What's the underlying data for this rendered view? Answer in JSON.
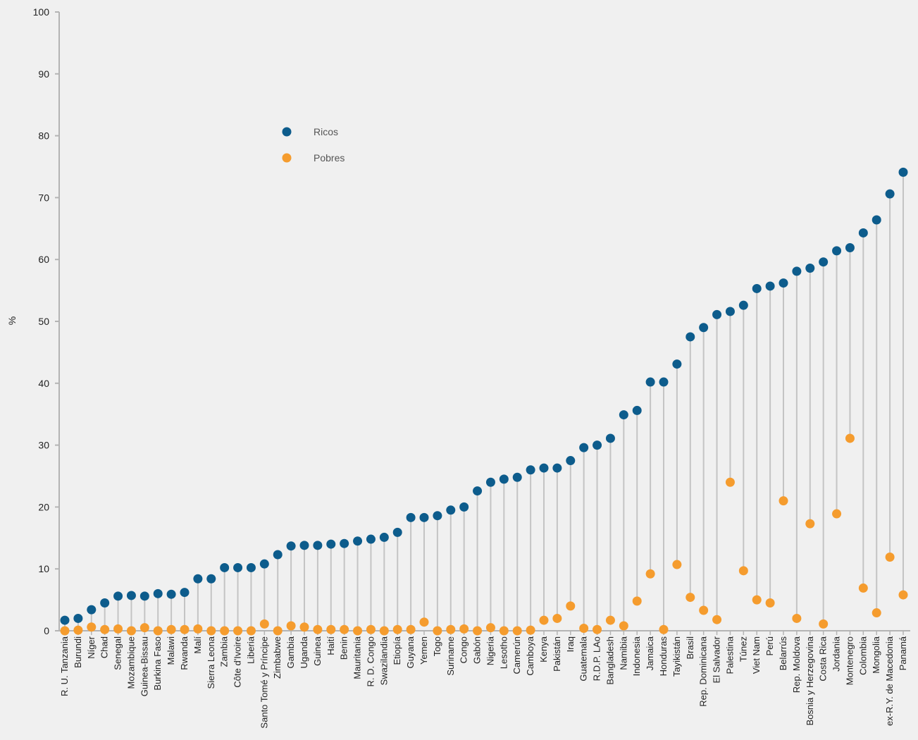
{
  "chart_data": {
    "type": "scatter",
    "ylabel": "%",
    "ylim": [
      0,
      100
    ],
    "yticks": [
      0,
      10,
      20,
      30,
      40,
      50,
      60,
      70,
      80,
      90,
      100
    ],
    "legend_position": "upper-left",
    "colors": {
      "ricos": "#0d5c8c",
      "pobres": "#f59c2e",
      "connector": "#c4c4c4",
      "axis": "#b4b4b4"
    },
    "categories": [
      "R. U. Tanzania",
      "Burundi",
      "Níger",
      "Chad",
      "Senegal",
      "Mozambique",
      "Guinea-Bissau",
      "Burkina Faso",
      "Malawi",
      "Rwanda",
      "Malí",
      "Sierra Leona",
      "Zambia",
      "Côte d'Ivoire",
      "Liberia",
      "Santo Tomé y Príncipe",
      "Zimbabwe",
      "Gambia",
      "Uganda",
      "Guinea",
      "Haití",
      "Benin",
      "Mauritania",
      "R. D. Congo",
      "Swazilandia",
      "Etiopía",
      "Guyana",
      "Yemen",
      "Togo",
      "Suriname",
      "Congo",
      "Gabón",
      "Nigeria",
      "Lesotho",
      "Camerún",
      "Camboya",
      "Kenya",
      "Pakistán",
      "Iraq",
      "Guatemala",
      "R.D.P. LAo",
      "Bangladesh",
      "Namibia",
      "Indonesia",
      "Jamaica",
      "Honduras",
      "Tayikistán",
      "Brasil",
      "Rep. Dominicana",
      "El Salvador",
      "Palestina",
      "Túnez",
      "Viet Nam",
      "Perú",
      "Belarrús",
      "Rep. Moldova",
      "Bosnia y Herzegovina",
      "Costa Rica",
      "Jordania",
      "Montenegro",
      "Colombia",
      "Mongolia",
      "ex-R.Y. de Macedonia",
      "Panamá"
    ],
    "series": [
      {
        "name": "Ricos",
        "values": [
          1.7,
          2.0,
          3.4,
          4.5,
          5.6,
          5.7,
          5.6,
          6.0,
          5.9,
          6.2,
          8.4,
          8.4,
          10.2,
          10.2,
          10.2,
          10.8,
          12.3,
          13.7,
          13.8,
          13.8,
          14.0,
          14.1,
          14.5,
          14.8,
          15.1,
          15.9,
          18.3,
          18.3,
          18.6,
          19.5,
          20.0,
          22.6,
          24.0,
          24.5,
          24.8,
          26.0,
          26.3,
          26.3,
          27.5,
          29.6,
          30.0,
          31.1,
          34.9,
          35.6,
          40.2,
          40.2,
          43.1,
          47.5,
          49.0,
          51.1,
          51.6,
          52.6,
          55.3,
          55.7,
          56.2,
          58.1,
          58.6,
          59.6,
          61.4,
          61.9,
          64.3,
          66.4,
          70.6,
          74.1
        ]
      },
      {
        "name": "Pobres",
        "values": [
          0.0,
          0.1,
          0.6,
          0.2,
          0.3,
          0.0,
          0.5,
          0.0,
          0.2,
          0.2,
          0.3,
          0.0,
          0.0,
          0.0,
          0.0,
          1.1,
          0.0,
          0.8,
          0.6,
          0.2,
          0.2,
          0.2,
          0.0,
          0.2,
          0.0,
          0.2,
          0.2,
          1.4,
          0.0,
          0.2,
          0.3,
          0.0,
          0.5,
          0.0,
          0.0,
          0.1,
          1.7,
          2.0,
          4.0,
          0.4,
          0.2,
          1.7,
          0.8,
          4.8,
          9.2,
          0.2,
          10.7,
          5.4,
          3.3,
          1.8,
          24.0,
          9.7,
          5.0,
          4.5,
          21.0,
          2.0,
          17.3,
          1.1,
          18.9,
          31.1,
          6.9,
          2.9,
          11.9,
          5.8
        ]
      }
    ]
  }
}
